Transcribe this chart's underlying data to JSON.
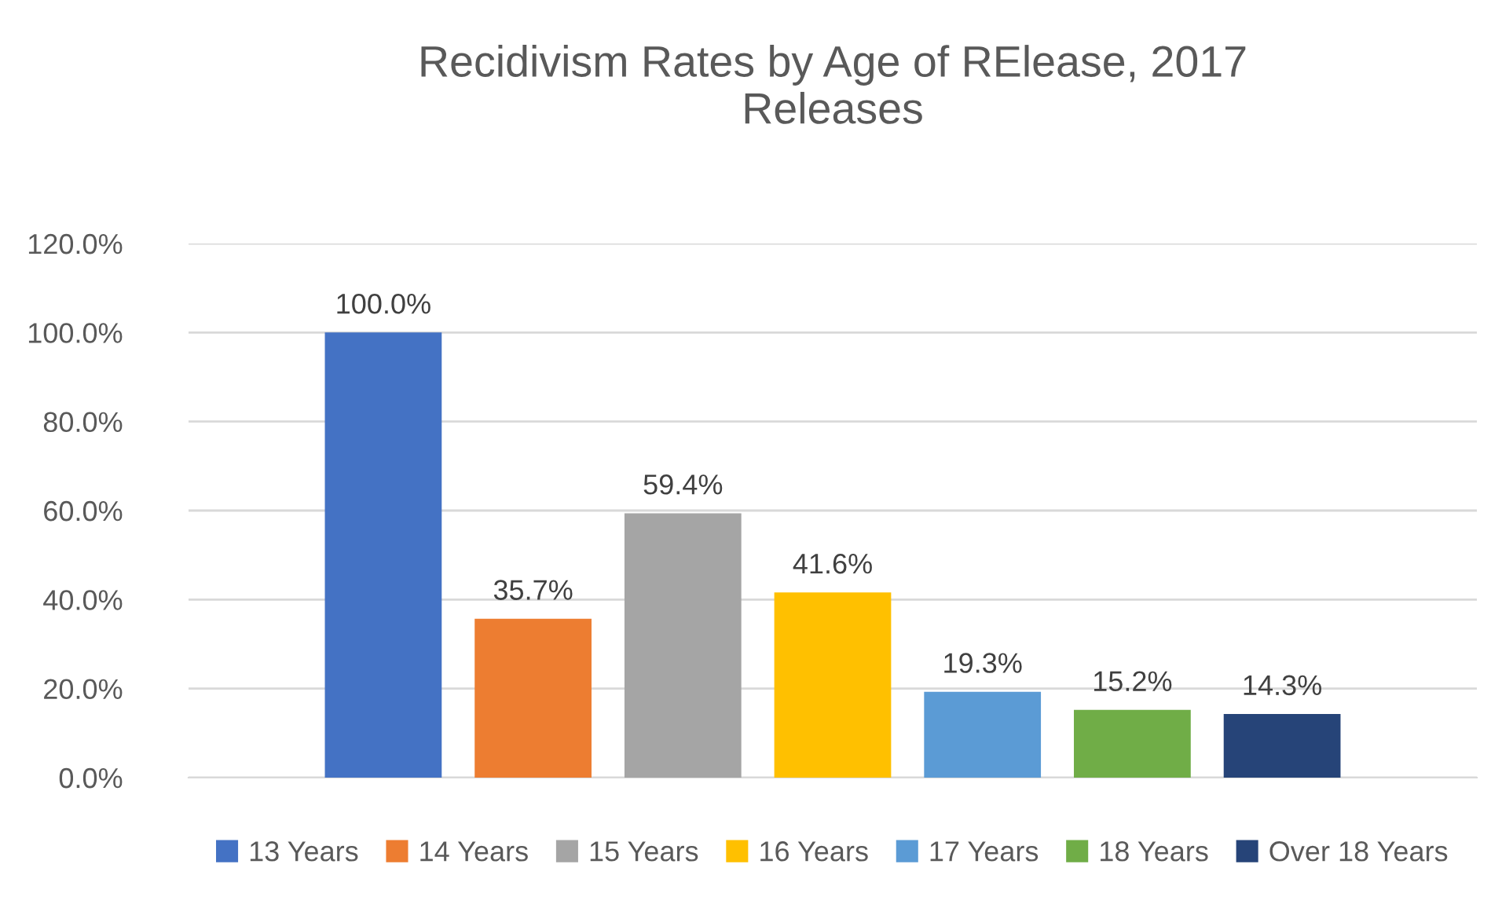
{
  "chart_data": {
    "type": "bar",
    "title": "Recidivism Rates by Age of RElease, 2017\nReleases",
    "categories": [
      null
    ],
    "series": [
      {
        "name": "13 Years",
        "color": "#4472c4",
        "values": [
          100.0
        ],
        "value_labels": [
          "100.0%"
        ]
      },
      {
        "name": "14 Years",
        "color": "#ed7d31",
        "values": [
          35.7
        ],
        "value_labels": [
          "35.7%"
        ]
      },
      {
        "name": "15 Years",
        "color": "#a5a5a5",
        "values": [
          59.4
        ],
        "value_labels": [
          "59.4%"
        ]
      },
      {
        "name": "16 Years",
        "color": "#ffc000",
        "values": [
          41.6
        ],
        "value_labels": [
          "41.6%"
        ]
      },
      {
        "name": "17 Years",
        "color": "#5b9bd5",
        "values": [
          19.3
        ],
        "value_labels": [
          "19.3%"
        ]
      },
      {
        "name": "18 Years",
        "color": "#70ad47",
        "values": [
          15.2
        ],
        "value_labels": [
          "15.2%"
        ]
      },
      {
        "name": "Over 18 Years",
        "color": "#264478",
        "values": [
          14.3
        ],
        "value_labels": [
          "14.3%"
        ]
      }
    ],
    "ylim": [
      0,
      120
    ],
    "yticks": [
      {
        "value": 0,
        "label": "0.0%"
      },
      {
        "value": 20,
        "label": "20.0%"
      },
      {
        "value": 40,
        "label": "40.0%"
      },
      {
        "value": 60,
        "label": "60.0%"
      },
      {
        "value": 80,
        "label": "80.0%"
      },
      {
        "value": 100,
        "label": "100.0%"
      },
      {
        "value": 120,
        "label": "120.0%"
      }
    ],
    "grid": "y",
    "legend": "bottom"
  }
}
